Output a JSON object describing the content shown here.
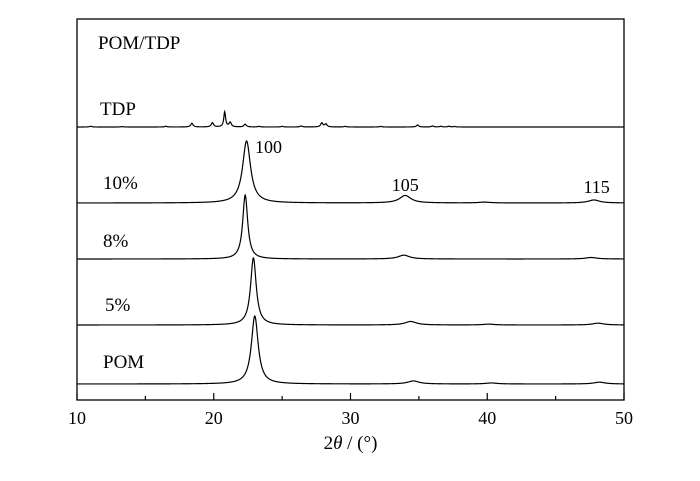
{
  "chart_data": {
    "type": "line",
    "title": "POM/TDP",
    "xlabel": "2θ / (°)",
    "ylabel": "",
    "xlim": [
      10,
      50
    ],
    "xticks": [
      10,
      20,
      30,
      40,
      50
    ],
    "y_ticks_shown": false,
    "grid": false,
    "series": [
      {
        "name": "TDP",
        "baseline": 0,
        "peaks": [
          {
            "x": 11.0,
            "h": 0.7,
            "w": 0.1
          },
          {
            "x": 13.3,
            "h": 0.4,
            "w": 0.1
          },
          {
            "x": 16.5,
            "h": 0.7,
            "w": 0.1
          },
          {
            "x": 18.4,
            "h": 3.7,
            "w": 0.1
          },
          {
            "x": 19.9,
            "h": 4.2,
            "w": 0.1
          },
          {
            "x": 20.8,
            "h": 15.0,
            "w": 0.08
          },
          {
            "x": 21.2,
            "h": 4.5,
            "w": 0.1
          },
          {
            "x": 22.3,
            "h": 2.8,
            "w": 0.1
          },
          {
            "x": 23.3,
            "h": 0.6,
            "w": 0.1
          },
          {
            "x": 25.0,
            "h": 0.6,
            "w": 0.1
          },
          {
            "x": 26.4,
            "h": 1.0,
            "w": 0.1
          },
          {
            "x": 27.9,
            "h": 4.0,
            "w": 0.1
          },
          {
            "x": 28.2,
            "h": 3.0,
            "w": 0.1
          },
          {
            "x": 29.6,
            "h": 0.6,
            "w": 0.1
          },
          {
            "x": 32.2,
            "h": 0.6,
            "w": 0.1
          },
          {
            "x": 34.9,
            "h": 2.0,
            "w": 0.1
          },
          {
            "x": 36.0,
            "h": 1.0,
            "w": 0.1
          },
          {
            "x": 36.6,
            "h": 0.7,
            "w": 0.1
          },
          {
            "x": 37.2,
            "h": 0.7,
            "w": 0.1
          },
          {
            "x": 37.6,
            "h": 0.5,
            "w": 0.1
          }
        ]
      },
      {
        "name": "10%",
        "baseline": 0,
        "peaks": [
          {
            "x": 22.4,
            "h": 62,
            "w": 0.35
          },
          {
            "x": 34.0,
            "h": 7.5,
            "w": 0.5
          },
          {
            "x": 39.8,
            "h": 0.8,
            "w": 0.5
          },
          {
            "x": 47.8,
            "h": 3.0,
            "w": 0.5
          }
        ]
      },
      {
        "name": "8%",
        "baseline": 0,
        "peaks": [
          {
            "x": 22.3,
            "h": 64,
            "w": 0.22
          },
          {
            "x": 33.9,
            "h": 3.8,
            "w": 0.5
          },
          {
            "x": 47.6,
            "h": 1.5,
            "w": 0.5
          }
        ]
      },
      {
        "name": "5%",
        "baseline": 0,
        "peaks": [
          {
            "x": 22.9,
            "h": 67,
            "w": 0.25
          },
          {
            "x": 34.4,
            "h": 3.5,
            "w": 0.5
          },
          {
            "x": 40.1,
            "h": 0.8,
            "w": 0.5
          },
          {
            "x": 48.1,
            "h": 1.8,
            "w": 0.5
          }
        ]
      },
      {
        "name": "POM",
        "baseline": 0,
        "peaks": [
          {
            "x": 23.0,
            "h": 68,
            "w": 0.3
          },
          {
            "x": 34.6,
            "h": 3.0,
            "w": 0.5
          },
          {
            "x": 40.3,
            "h": 1.0,
            "w": 0.5
          },
          {
            "x": 48.2,
            "h": 1.8,
            "w": 0.5
          }
        ]
      }
    ],
    "annotations": [
      {
        "text": "100",
        "x": 24.0
      },
      {
        "text": "105",
        "x": 34.0
      },
      {
        "text": "115",
        "x": 48.0
      }
    ]
  }
}
